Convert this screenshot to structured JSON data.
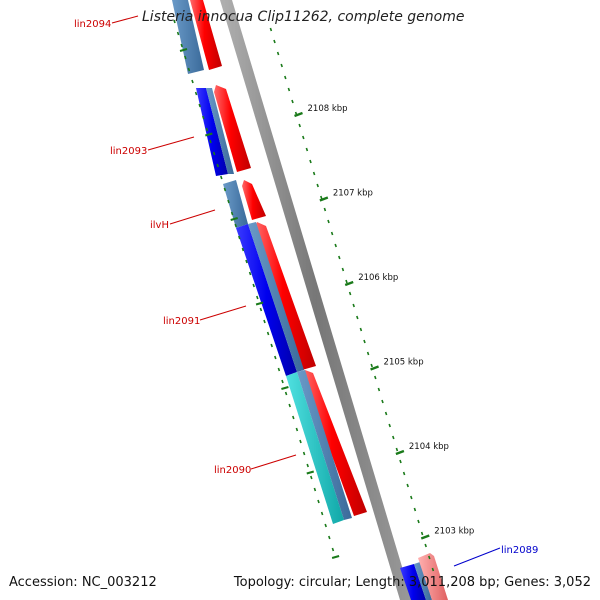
{
  "title": "Listeria innocua Clip11262, complete genome",
  "footer": {
    "accession": "Accession: NC_003212",
    "info": "Topology: circular; Length: 3,011,208 bp; Genes: 3,052"
  },
  "colors": {
    "backbone": "#888888",
    "tick": "#1a7a1a",
    "forward": "#ff0000",
    "forward_light": "#f08080",
    "reverse": "#0000ee",
    "reverse_dim": "#4682b4",
    "rna": "#20c0c0",
    "label_red": "#cc0000",
    "label_blue": "#0000cc"
  },
  "ticks": [
    {
      "label": "2108 kbp"
    },
    {
      "label": "2107 kbp"
    },
    {
      "label": "2106 kbp"
    },
    {
      "label": "2105 kbp"
    },
    {
      "label": "2104 kbp"
    },
    {
      "label": "2103 kbp"
    }
  ],
  "gene_labels": [
    {
      "name": "lin2094",
      "color": "#cc0000"
    },
    {
      "name": "lin2093",
      "color": "#cc0000"
    },
    {
      "name": "ilvH",
      "color": "#cc0000"
    },
    {
      "name": "lin2091",
      "color": "#cc0000"
    },
    {
      "name": "lin2090",
      "color": "#cc0000"
    },
    {
      "name": "lin2089",
      "color": "#0000cc"
    }
  ]
}
